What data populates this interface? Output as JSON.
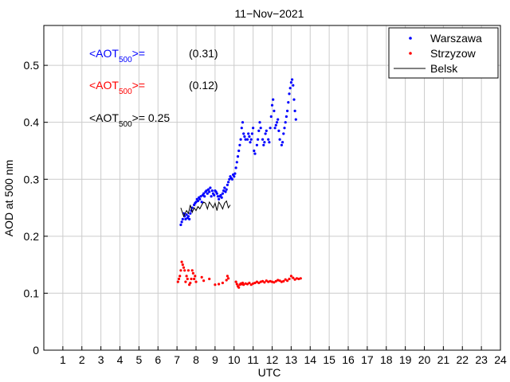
{
  "chart_data": {
    "type": "scatter",
    "title": "11−Nov−2021",
    "xlabel": "UTC",
    "ylabel": "AOD at 500 nm",
    "xlim": [
      0,
      24
    ],
    "ylim": [
      0,
      0.57
    ],
    "xticks": [
      1,
      2,
      3,
      4,
      5,
      6,
      7,
      8,
      9,
      10,
      11,
      12,
      13,
      14,
      15,
      16,
      17,
      18,
      19,
      20,
      21,
      22,
      23,
      24
    ],
    "yticks": [
      0,
      0.1,
      0.2,
      0.3,
      0.4,
      0.5
    ],
    "ytick_labels": [
      "0",
      "0.1",
      "0.2",
      "0.3",
      "0.4",
      "0.5"
    ],
    "grid": true,
    "legend_position": "top-right",
    "legend": [
      {
        "label": "Warszawa",
        "marker": "dot",
        "color": "#0000ff"
      },
      {
        "label": "Strzyzow",
        "marker": "dot",
        "color": "#ff0000"
      },
      {
        "label": "Belsk",
        "marker": "line",
        "color": "#000000"
      }
    ],
    "annotations": [
      {
        "prefix": "<AOT",
        "sub": "500",
        "suffix": ">=",
        "value": "(0.31)",
        "color": "#0000ff"
      },
      {
        "prefix": "<AOT",
        "sub": "500",
        "suffix": ">=",
        "value": "(0.12)",
        "color": "#ff0000"
      },
      {
        "prefix": "<AOT",
        "sub": "500",
        "suffix": ">= 0.25",
        "value": "",
        "color": "#000000"
      }
    ],
    "series": [
      {
        "name": "Warszawa",
        "kind": "points",
        "color": "#0000ff",
        "x": [
          7.2,
          7.25,
          7.3,
          7.35,
          7.4,
          7.45,
          7.5,
          7.55,
          7.6,
          7.65,
          7.7,
          7.75,
          7.8,
          7.9,
          7.95,
          8.0,
          8.05,
          8.1,
          8.15,
          8.2,
          8.25,
          8.3,
          8.35,
          8.4,
          8.45,
          8.5,
          8.55,
          8.6,
          8.65,
          8.7,
          8.75,
          8.8,
          8.85,
          8.9,
          8.95,
          9.0,
          9.05,
          9.1,
          9.15,
          9.2,
          9.25,
          9.3,
          9.35,
          9.4,
          9.45,
          9.5,
          9.55,
          9.6,
          9.65,
          9.7,
          9.75,
          9.8,
          9.85,
          9.9,
          9.95,
          10.0,
          10.05,
          10.1,
          10.15,
          10.2,
          10.25,
          10.3,
          10.35,
          10.4,
          10.45,
          10.5,
          10.55,
          10.6,
          10.7,
          10.75,
          10.8,
          10.85,
          10.9,
          10.95,
          11.0,
          11.05,
          11.1,
          11.2,
          11.25,
          11.3,
          11.35,
          11.4,
          11.5,
          11.55,
          11.6,
          11.65,
          11.7,
          11.8,
          11.85,
          11.9,
          11.95,
          12.0,
          12.05,
          12.1,
          12.15,
          12.2,
          12.25,
          12.3,
          12.35,
          12.4,
          12.5,
          12.55,
          12.6,
          12.65,
          12.7,
          12.75,
          12.8,
          12.85,
          12.9,
          12.95,
          13.0,
          13.05,
          13.1,
          13.15,
          13.2,
          13.25
        ],
        "y": [
          0.22,
          0.225,
          0.23,
          0.24,
          0.235,
          0.23,
          0.238,
          0.232,
          0.235,
          0.23,
          0.24,
          0.245,
          0.25,
          0.255,
          0.258,
          0.26,
          0.265,
          0.262,
          0.268,
          0.265,
          0.27,
          0.26,
          0.272,
          0.275,
          0.27,
          0.278,
          0.28,
          0.275,
          0.282,
          0.278,
          0.285,
          0.27,
          0.28,
          0.275,
          0.272,
          0.28,
          0.278,
          0.275,
          0.27,
          0.265,
          0.27,
          0.272,
          0.268,
          0.275,
          0.28,
          0.285,
          0.278,
          0.282,
          0.29,
          0.295,
          0.3,
          0.305,
          0.302,
          0.3,
          0.308,
          0.305,
          0.31,
          0.32,
          0.33,
          0.34,
          0.35,
          0.36,
          0.37,
          0.39,
          0.4,
          0.38,
          0.375,
          0.37,
          0.37,
          0.38,
          0.375,
          0.365,
          0.37,
          0.38,
          0.39,
          0.35,
          0.345,
          0.36,
          0.37,
          0.385,
          0.4,
          0.39,
          0.37,
          0.36,
          0.365,
          0.38,
          0.385,
          0.37,
          0.365,
          0.39,
          0.41,
          0.43,
          0.44,
          0.42,
          0.39,
          0.395,
          0.4,
          0.405,
          0.385,
          0.37,
          0.36,
          0.365,
          0.38,
          0.39,
          0.4,
          0.41,
          0.42,
          0.435,
          0.45,
          0.46,
          0.47,
          0.475,
          0.465,
          0.44,
          0.42,
          0.405
        ]
      },
      {
        "name": "Strzyzow",
        "kind": "points",
        "color": "#ff0000",
        "x": [
          7.05,
          7.1,
          7.15,
          7.2,
          7.25,
          7.3,
          7.35,
          7.4,
          7.45,
          7.5,
          7.55,
          7.6,
          7.65,
          7.7,
          7.75,
          7.8,
          7.85,
          7.9,
          7.95,
          8.0,
          8.3,
          8.4,
          8.7,
          9.0,
          9.2,
          9.4,
          9.6,
          9.65,
          9.7,
          10.1,
          10.15,
          10.2,
          10.25,
          10.3,
          10.35,
          10.4,
          10.45,
          10.5,
          10.6,
          10.7,
          10.8,
          10.9,
          11.0,
          11.1,
          11.2,
          11.3,
          11.4,
          11.5,
          11.6,
          11.7,
          11.8,
          11.9,
          12.0,
          12.1,
          12.2,
          12.3,
          12.4,
          12.5,
          12.6,
          12.7,
          12.8,
          12.9,
          13.0,
          13.1,
          13.2,
          13.3,
          13.4,
          13.5
        ],
        "y": [
          0.12,
          0.125,
          0.13,
          0.14,
          0.155,
          0.15,
          0.145,
          0.14,
          0.12,
          0.13,
          0.125,
          0.14,
          0.115,
          0.118,
          0.125,
          0.14,
          0.135,
          0.125,
          0.13,
          0.12,
          0.128,
          0.122,
          0.125,
          0.115,
          0.116,
          0.118,
          0.123,
          0.13,
          0.126,
          0.12,
          0.116,
          0.112,
          0.11,
          0.115,
          0.117,
          0.116,
          0.118,
          0.115,
          0.117,
          0.116,
          0.118,
          0.115,
          0.117,
          0.118,
          0.12,
          0.118,
          0.12,
          0.121,
          0.119,
          0.122,
          0.12,
          0.121,
          0.12,
          0.119,
          0.121,
          0.123,
          0.122,
          0.12,
          0.121,
          0.124,
          0.122,
          0.125,
          0.13,
          0.127,
          0.124,
          0.126,
          0.125,
          0.126
        ]
      },
      {
        "name": "Belsk",
        "kind": "line",
        "color": "#000000",
        "x": [
          7.2,
          7.35,
          7.5,
          7.6,
          7.7,
          7.8,
          7.9,
          8.0,
          8.1,
          8.2,
          8.3,
          8.4,
          8.5,
          8.6,
          8.7,
          8.8,
          8.9,
          9.0,
          9.1,
          9.2,
          9.3,
          9.4,
          9.5,
          9.6,
          9.7,
          9.8
        ],
        "y": [
          0.25,
          0.235,
          0.245,
          0.24,
          0.255,
          0.242,
          0.25,
          0.245,
          0.252,
          0.248,
          0.255,
          0.26,
          0.258,
          0.248,
          0.26,
          0.255,
          0.25,
          0.258,
          0.245,
          0.26,
          0.255,
          0.248,
          0.258,
          0.262,
          0.25,
          0.255
        ]
      }
    ]
  }
}
